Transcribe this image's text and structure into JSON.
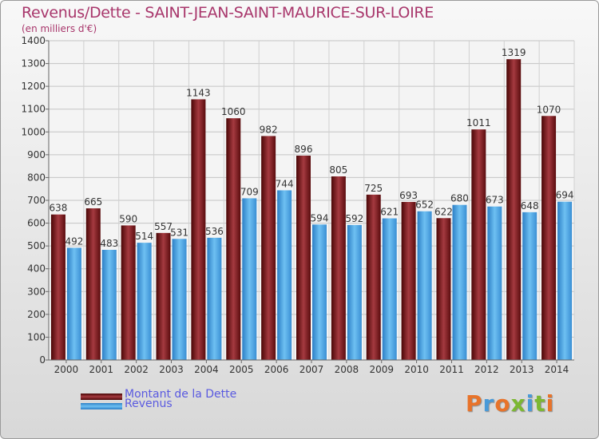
{
  "title": "Revenus/Dette - SAINT-JEAN-SAINT-MAURICE-SUR-LOIRE",
  "subtitle": "(en milliers d'€)",
  "logo": {
    "text": "Proxiti",
    "colors": [
      "#e8732a",
      "#4a9ad8",
      "#e8732a",
      "#7cb832",
      "#4a9ad8",
      "#7cb832",
      "#e8732a"
    ]
  },
  "legend": {
    "position": "bottom-left"
  },
  "colors": {
    "dette": "#7a1e22",
    "revenus": "#4aa4e6"
  },
  "chart_data": {
    "type": "bar",
    "categories": [
      "2000",
      "2001",
      "2002",
      "2003",
      "2004",
      "2005",
      "2006",
      "2007",
      "2008",
      "2009",
      "2010",
      "2011",
      "2012",
      "2013",
      "2014"
    ],
    "series": [
      {
        "name": "Montant de la Dette",
        "values": [
          638,
          665,
          590,
          557,
          1143,
          1060,
          982,
          896,
          805,
          725,
          693,
          622,
          1011,
          1319,
          1070
        ]
      },
      {
        "name": "Revenus",
        "values": [
          492,
          483,
          514,
          531,
          536,
          709,
          744,
          594,
          592,
          621,
          652,
          680,
          673,
          648,
          694
        ]
      }
    ],
    "ylim": [
      0,
      1400
    ],
    "yticks": [
      0,
      100,
      200,
      300,
      400,
      500,
      600,
      700,
      800,
      900,
      1000,
      1100,
      1200,
      1300,
      1400
    ],
    "grid": true
  }
}
